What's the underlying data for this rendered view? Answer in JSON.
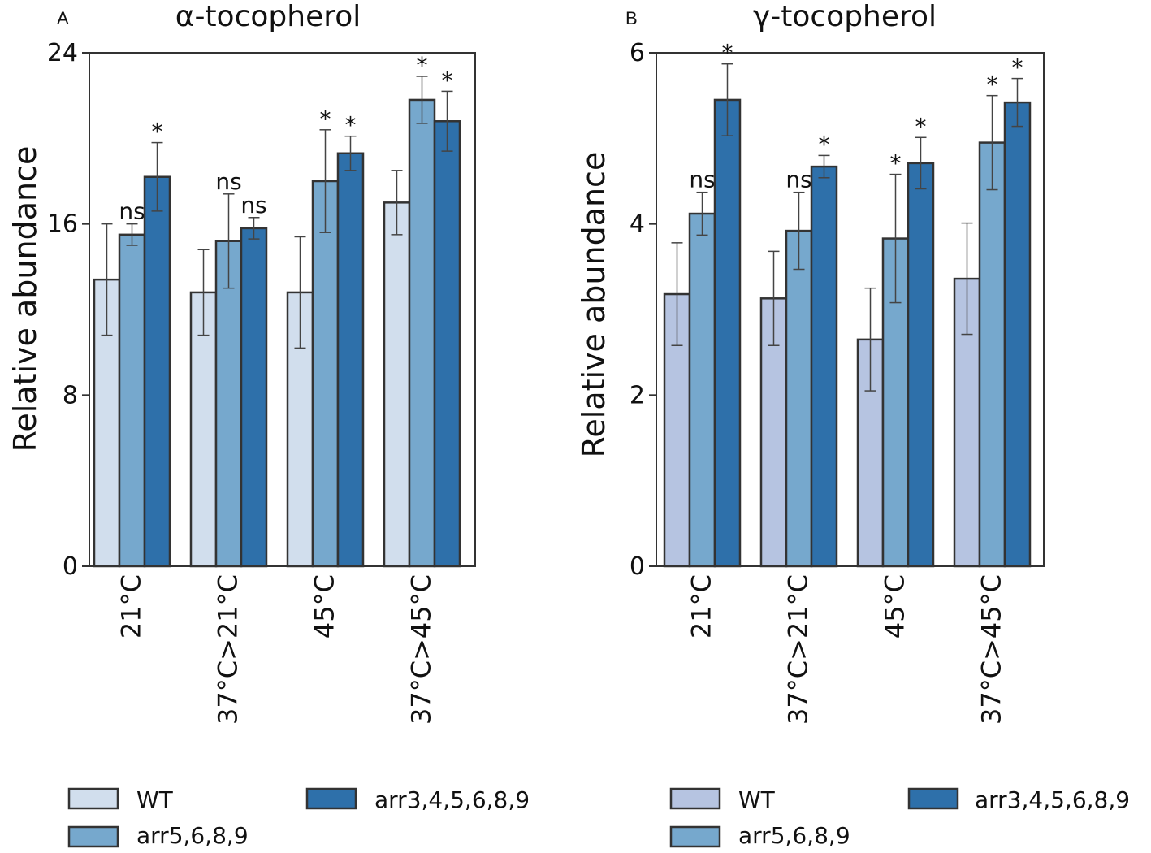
{
  "legend": {
    "items": [
      "WT",
      "arr5,6,8,9",
      "arr3,4,5,6,8,9"
    ]
  },
  "chart_data": [
    {
      "type": "bar",
      "panel": "A",
      "title": "α-tocopherol",
      "xlabel": "",
      "ylabel": "Relative abundance",
      "ylim": [
        0,
        24
      ],
      "yticks": [
        0,
        8,
        16,
        24
      ],
      "categories": [
        "21°C",
        "37°C>21°C",
        "45°C",
        "37°C>45°C"
      ],
      "colors": [
        "#d1deed",
        "#76a8cd",
        "#2e70aa"
      ],
      "series": [
        {
          "name": "WT",
          "values": [
            13.4,
            12.8,
            12.8,
            17.0
          ],
          "errors": [
            2.6,
            2.0,
            2.6,
            1.5
          ]
        },
        {
          "name": "arr5,6,8,9",
          "values": [
            15.5,
            15.2,
            18.0,
            21.8
          ],
          "errors": [
            0.5,
            2.2,
            2.4,
            1.1
          ]
        },
        {
          "name": "arr3,4,5,6,8,9",
          "values": [
            18.2,
            15.8,
            19.3,
            20.8
          ],
          "errors": [
            1.6,
            0.5,
            0.8,
            1.4
          ]
        }
      ],
      "annotations": [
        [
          "",
          "ns",
          "*"
        ],
        [
          "",
          "ns",
          "ns"
        ],
        [
          "",
          "*",
          "*"
        ],
        [
          "",
          "*",
          "*"
        ]
      ]
    },
    {
      "type": "bar",
      "panel": "B",
      "title": "γ-tocopherol",
      "xlabel": "",
      "ylabel": "Relative abundance",
      "ylim": [
        0,
        6
      ],
      "yticks": [
        0,
        2,
        4,
        6
      ],
      "categories": [
        "21°C",
        "37°C>21°C",
        "45°C",
        "37°C>45°C"
      ],
      "colors": [
        "#b6c4e1",
        "#76a8cd",
        "#2e70aa"
      ],
      "series": [
        {
          "name": "WT",
          "values": [
            3.18,
            3.13,
            2.65,
            3.36
          ],
          "errors": [
            0.6,
            0.55,
            0.6,
            0.65
          ]
        },
        {
          "name": "arr5,6,8,9",
          "values": [
            4.12,
            3.92,
            3.83,
            4.95
          ],
          "errors": [
            0.25,
            0.45,
            0.75,
            0.55
          ]
        },
        {
          "name": "arr3,4,5,6,8,9",
          "values": [
            5.45,
            4.67,
            4.71,
            5.42
          ],
          "errors": [
            0.42,
            0.13,
            0.3,
            0.28
          ]
        }
      ],
      "annotations": [
        [
          "",
          "ns",
          "*"
        ],
        [
          "",
          "ns",
          "*"
        ],
        [
          "",
          "*",
          "*"
        ],
        [
          "",
          "*",
          "*"
        ]
      ]
    }
  ]
}
